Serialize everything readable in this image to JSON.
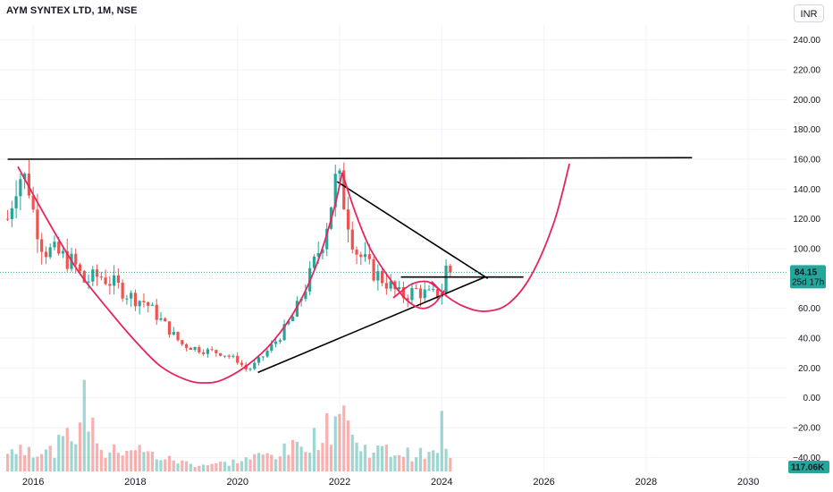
{
  "header": {
    "title": "AYM SYNTEX LTD, 1M, NSE",
    "currency": "INR"
  },
  "colors": {
    "up": "#26a69a",
    "down": "#ef5350",
    "curve": "#e8245c",
    "line": "#000000",
    "price": "#26a69a"
  },
  "price_label": {
    "price": "84.15",
    "countdown": "25d 17h"
  },
  "volume_label": "117.06K",
  "chart_data": {
    "type": "candlestick",
    "title": "AYM SYNTEX LTD, 1M, NSE",
    "ylim": [
      -50,
      250
    ],
    "xlim": [
      2015.35,
      2030.75
    ],
    "y_ticks": [
      "240.00",
      "220.00",
      "200.00",
      "180.00",
      "160.00",
      "140.00",
      "120.00",
      "100.00",
      "80.00",
      "60.00",
      "40.00",
      "20.00",
      "0.00",
      "−20.00",
      "−40.00"
    ],
    "x_ticks": [
      "2016",
      "2018",
      "2020",
      "2022",
      "2024",
      "2026",
      "2028",
      "2030"
    ],
    "last_price": 84.15,
    "grid": true,
    "candle_path": [
      [
        2015.5,
        120
      ],
      [
        2015.7,
        150
      ],
      [
        2015.9,
        145
      ],
      [
        2016.0,
        125
      ],
      [
        2016.2,
        100
      ],
      [
        2016.5,
        96
      ],
      [
        2016.8,
        90
      ],
      [
        2017.0,
        78
      ],
      [
        2017.3,
        82
      ],
      [
        2017.6,
        76
      ],
      [
        2017.9,
        68
      ],
      [
        2018.2,
        64
      ],
      [
        2018.6,
        48
      ],
      [
        2018.9,
        36
      ],
      [
        2019.3,
        32
      ],
      [
        2019.7,
        30
      ],
      [
        2020.0,
        25
      ],
      [
        2020.2,
        18
      ],
      [
        2020.5,
        28
      ],
      [
        2020.8,
        40
      ],
      [
        2021.1,
        55
      ],
      [
        2021.4,
        80
      ],
      [
        2021.7,
        110
      ],
      [
        2021.95,
        150
      ],
      [
        2022.1,
        130
      ],
      [
        2022.3,
        100
      ],
      [
        2022.6,
        86
      ],
      [
        2022.9,
        78
      ],
      [
        2023.2,
        68
      ],
      [
        2023.5,
        72
      ],
      [
        2023.8,
        68
      ],
      [
        2024.0,
        72
      ],
      [
        2024.1,
        90
      ],
      [
        2024.2,
        84
      ]
    ],
    "volume_path": [
      [
        2015.5,
        0.25
      ],
      [
        2015.9,
        0.3
      ],
      [
        2016.3,
        0.22
      ],
      [
        2016.8,
        0.45
      ],
      [
        2017.0,
        0.8
      ],
      [
        2017.4,
        0.2
      ],
      [
        2017.9,
        0.3
      ],
      [
        2018.2,
        0.22
      ],
      [
        2018.6,
        0.15
      ],
      [
        2019.2,
        0.08
      ],
      [
        2019.8,
        0.1
      ],
      [
        2020.2,
        0.15
      ],
      [
        2020.6,
        0.2
      ],
      [
        2021.0,
        0.25
      ],
      [
        2021.5,
        0.4
      ],
      [
        2021.9,
        0.55
      ],
      [
        2022.0,
        1.0
      ],
      [
        2022.3,
        0.3
      ],
      [
        2022.8,
        0.25
      ],
      [
        2023.5,
        0.2
      ],
      [
        2023.9,
        0.2
      ],
      [
        2024.0,
        0.6
      ],
      [
        2024.1,
        0.15
      ]
    ],
    "volume_scale_max": 117.06,
    "lines": [
      {
        "name": "resistance",
        "points": [
          [
            2015.5,
            160
          ],
          [
            2028.9,
            161
          ]
        ]
      },
      {
        "name": "triangle-upper",
        "points": [
          [
            2021.95,
            145
          ],
          [
            2024.9,
            80
          ]
        ]
      },
      {
        "name": "triangle-lower",
        "points": [
          [
            2020.4,
            17
          ],
          [
            2024.85,
            81
          ]
        ]
      },
      {
        "name": "breakout-level",
        "points": [
          [
            2023.2,
            81
          ],
          [
            2025.6,
            81
          ]
        ]
      }
    ],
    "curves": [
      {
        "name": "cup-left",
        "points": [
          [
            2015.7,
            155
          ],
          [
            2016.3,
            118
          ],
          [
            2016.9,
            84
          ],
          [
            2017.5,
            58
          ],
          [
            2018.0,
            38
          ],
          [
            2018.5,
            21
          ],
          [
            2019.0,
            12
          ],
          [
            2019.35,
            10
          ],
          [
            2019.7,
            12
          ],
          [
            2020.2,
            22
          ],
          [
            2020.7,
            38
          ],
          [
            2021.2,
            63
          ],
          [
            2021.6,
            94
          ],
          [
            2021.9,
            128
          ],
          [
            2022.05,
            151
          ]
        ]
      },
      {
        "name": "cup-right",
        "points": [
          [
            2022.05,
            151
          ],
          [
            2022.3,
            125
          ],
          [
            2022.6,
            100
          ],
          [
            2023.0,
            79
          ],
          [
            2023.3,
            66
          ],
          [
            2023.6,
            60
          ],
          [
            2023.85,
            63
          ],
          [
            2024.05,
            72
          ]
        ]
      },
      {
        "name": "handle",
        "points": [
          [
            2023.05,
            67
          ],
          [
            2023.4,
            76
          ],
          [
            2023.7,
            78
          ],
          [
            2023.9,
            74
          ],
          [
            2024.1,
            68
          ]
        ]
      },
      {
        "name": "projection",
        "points": [
          [
            2023.8,
            78
          ],
          [
            2024.1,
            68
          ],
          [
            2024.45,
            61
          ],
          [
            2024.85,
            58
          ],
          [
            2025.3,
            63
          ],
          [
            2025.75,
            82
          ],
          [
            2026.2,
            118
          ],
          [
            2026.5,
            157
          ]
        ]
      }
    ]
  }
}
